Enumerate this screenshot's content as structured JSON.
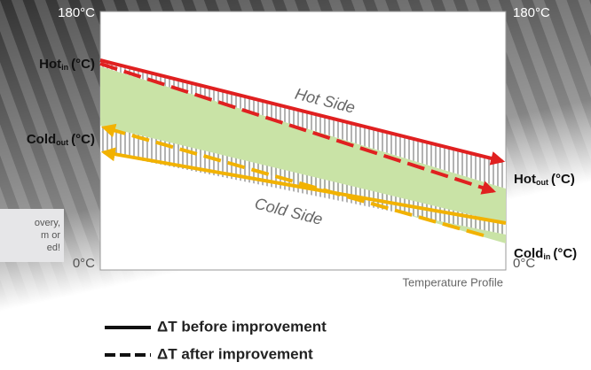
{
  "axis": {
    "left_top": "180°C",
    "right_top": "180°C",
    "left_bottom": "0°C",
    "right_bottom": "0°C"
  },
  "labels": {
    "hot_in": {
      "main": "Hot",
      "sub": "in",
      "unit": "(°C)"
    },
    "cold_out": {
      "main": "Cold",
      "sub": "out",
      "unit": "(°C)"
    },
    "hot_out": {
      "main": "Hot",
      "sub": "out",
      "unit": "(°C)"
    },
    "cold_in": {
      "main": "Cold",
      "sub": "in",
      "unit": "(°C)"
    }
  },
  "curves": {
    "hot_side": "Hot Side",
    "cold_side": "Cold Side"
  },
  "caption": "Temperature Profile",
  "legend": [
    "ΔT before improvement",
    "ΔT after improvement"
  ],
  "callout": [
    "overy,",
    "m or",
    "ed!"
  ]
}
